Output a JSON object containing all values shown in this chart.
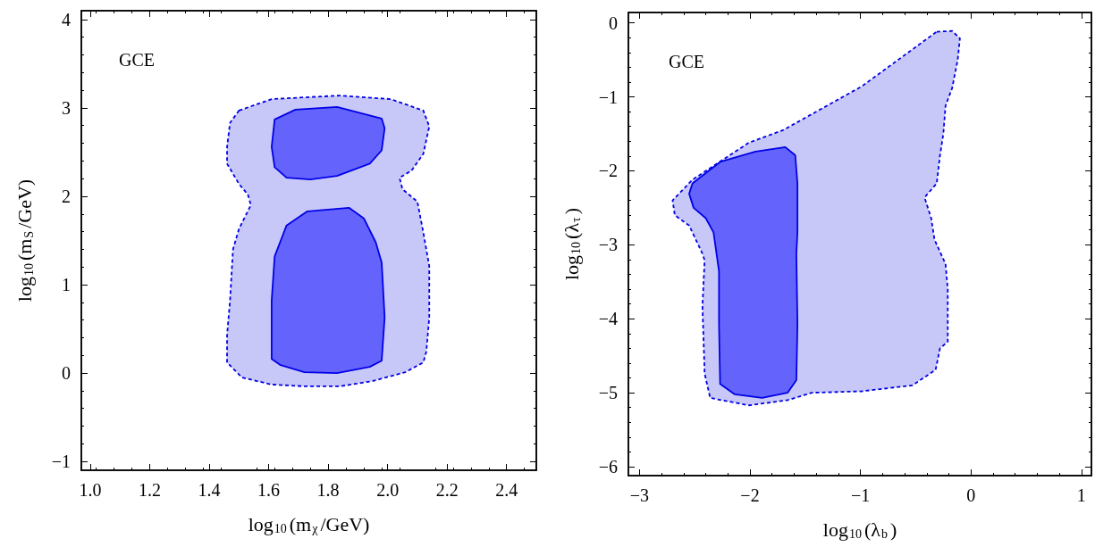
{
  "chart_data": [
    {
      "type": "area",
      "annotations": [
        "GCE"
      ],
      "xlabel": "log$_{10}$(m$_{χ}$/GeV)",
      "ylabel": "log$_{10}$(m$_{S}$/GeV)",
      "xlim": [
        0.97,
        2.5
      ],
      "ylim": [
        -1.1,
        4.1
      ],
      "xticks": [
        {
          "value": 1,
          "label": "1.0"
        },
        {
          "value": 1.2,
          "label": "1.2"
        },
        {
          "value": 1.4,
          "label": "1.4"
        },
        {
          "value": 1.6,
          "label": "1.6"
        },
        {
          "value": 1.8,
          "label": "1.8"
        },
        {
          "value": 2,
          "label": "2.0"
        },
        {
          "value": 2.2,
          "label": "2.2"
        },
        {
          "value": 2.4,
          "label": "2.4"
        }
      ],
      "yticks": [
        {
          "value": -1,
          "label": "−1"
        },
        0,
        1,
        2,
        3,
        4
      ],
      "grid": false,
      "series": [
        {
          "color": "#c8c8f8",
          "line_style": "dashed",
          "x": [
            1.5,
            1.61,
            1.84,
            2.01,
            2.12,
            2.14,
            2.12,
            2.08,
            2.04,
            2.05,
            2.1,
            2.12,
            2.14,
            2.14,
            2.13,
            2.12,
            2.06,
            1.95,
            1.84,
            1.72,
            1.61,
            1.51,
            1.46,
            1.46,
            1.47,
            1.48,
            1.5,
            1.54,
            1.53,
            1.5,
            1.46,
            1.46,
            1.47
          ],
          "values": [
            2.97,
            3.1,
            3.14,
            3.1,
            2.97,
            2.79,
            2.48,
            2.29,
            2.21,
            2.08,
            1.94,
            1.59,
            1.21,
            0.63,
            0.24,
            0.12,
            0.01,
            -0.09,
            -0.15,
            -0.15,
            -0.13,
            -0.05,
            0.12,
            0.43,
            0.82,
            1.4,
            1.63,
            1.9,
            2.02,
            2.14,
            2.37,
            2.56,
            2.83
          ]
        },
        {
          "color": "#6464fc",
          "line_style": "solid",
          "x": [
            1.62,
            1.69,
            1.83,
            1.98,
            1.99,
            1.98,
            1.94,
            1.83,
            1.74,
            1.66,
            1.62,
            1.61,
            null,
            1.73,
            1.87,
            1.92,
            1.96,
            1.98,
            1.99,
            1.98,
            1.94,
            1.83,
            1.72,
            1.64,
            1.61,
            1.61,
            1.62,
            1.66
          ],
          "values": [
            2.87,
            2.98,
            3.01,
            2.88,
            2.77,
            2.52,
            2.37,
            2.23,
            2.19,
            2.21,
            2.33,
            2.56,
            null,
            1.83,
            1.87,
            1.75,
            1.48,
            1.25,
            0.63,
            0.14,
            0.07,
            0,
            0.01,
            0.09,
            0.16,
            0.82,
            1.32,
            1.67
          ]
        }
      ]
    },
    {
      "type": "area",
      "annotations": [
        "GCE"
      ],
      "xlabel": "log$_{10}$(λ$_{b}$)",
      "ylabel": "log$_{10}$(λ$_{τ}$)",
      "xlim": [
        -3.1,
        1.09
      ],
      "ylim": [
        -6.12,
        0.14
      ],
      "xticks": [
        {
          "value": -3,
          "label": "−3"
        },
        {
          "value": -2,
          "label": "−2"
        },
        {
          "value": -1,
          "label": "−1"
        },
        0,
        1
      ],
      "yticks": [
        {
          "value": -6,
          "label": "−6"
        },
        {
          "value": -5,
          "label": "−5"
        },
        {
          "value": -4,
          "label": "−4"
        },
        {
          "value": -3,
          "label": "−3"
        },
        {
          "value": -2,
          "label": "−2"
        },
        {
          "value": -1,
          "label": "−1"
        },
        0
      ],
      "grid": false,
      "series": [
        {
          "color": "#c8c8f8",
          "line_style": "dashed",
          "x": [
            -0.31,
            -0.17,
            -0.1,
            -0.12,
            -0.17,
            -0.23,
            -0.25,
            -0.28,
            -0.31,
            -0.42,
            -0.36,
            -0.33,
            -0.23,
            -0.21,
            -0.21,
            -0.28,
            -0.32,
            -0.53,
            -0.99,
            -1.44,
            -1.66,
            -2.01,
            -2.36,
            -2.41,
            -2.43,
            -2.41,
            -2.43,
            -2.55,
            -2.68,
            -2.7,
            -2.52,
            -2.01,
            -1.7,
            -0.99
          ],
          "values": [
            -0.12,
            -0.11,
            -0.21,
            -0.5,
            -0.88,
            -1.12,
            -1.5,
            -1.79,
            -2.17,
            -2.36,
            -2.64,
            -2.93,
            -3.26,
            -3.6,
            -4.31,
            -4.4,
            -4.69,
            -4.9,
            -4.98,
            -5.0,
            -5.1,
            -5.17,
            -5.07,
            -4.74,
            -3.83,
            -3.21,
            -3.12,
            -2.74,
            -2.6,
            -2.4,
            -2.12,
            -1.62,
            -1.45,
            -0.86
          ]
        },
        {
          "color": "#6464fc",
          "line_style": "solid",
          "x": [
            -2.52,
            -2.27,
            -1.95,
            -1.68,
            -1.59,
            -1.57,
            -1.57,
            -1.58,
            -1.57,
            -1.58,
            -1.66,
            -1.89,
            -2.14,
            -2.27,
            -2.28,
            -2.28,
            -2.33,
            -2.4,
            -2.51,
            -2.55
          ],
          "values": [
            -2.17,
            -1.88,
            -1.74,
            -1.68,
            -1.79,
            -2.17,
            -2.83,
            -3.12,
            -4.07,
            -4.83,
            -5.0,
            -5.07,
            -5.02,
            -4.88,
            -4.07,
            -3.36,
            -2.83,
            -2.64,
            -2.5,
            -2.31
          ]
        }
      ]
    }
  ]
}
